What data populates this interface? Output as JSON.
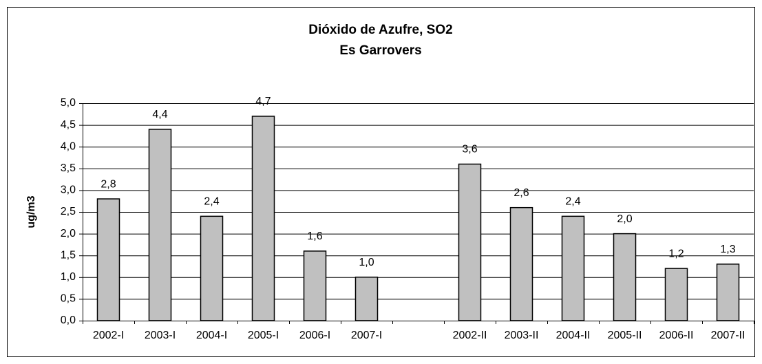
{
  "chart_data": {
    "type": "bar",
    "title": "Dióxido de Azufre, SO2",
    "subtitle": "Es Garrovers",
    "y_label": "ug/m3",
    "categories": [
      "2002-I",
      "2003-I",
      "2004-I",
      "2005-I",
      "2006-I",
      "2007-I",
      null,
      "2002-II",
      "2003-II",
      "2004-II",
      "2005-II",
      "2006-II",
      "2007-II"
    ],
    "values": [
      2.8,
      4.4,
      2.4,
      4.7,
      1.6,
      1.0,
      null,
      3.6,
      2.6,
      2.4,
      2.0,
      1.2,
      1.3
    ],
    "value_labels": [
      "2,8",
      "4,4",
      "2,4",
      "4,7",
      "1,6",
      "1,0",
      null,
      "3,6",
      "2,6",
      "2,4",
      "2,0",
      "1,2",
      "1,3"
    ],
    "color": "#c0c0c0",
    "ylim": [
      0,
      5
    ],
    "yticks": [
      {
        "value": 0,
        "label": "0,0"
      },
      {
        "value": 0.5,
        "label": "0,5"
      },
      {
        "value": 1,
        "label": "1,0"
      },
      {
        "value": 1.5,
        "label": "1,5"
      },
      {
        "value": 2,
        "label": "2,0"
      },
      {
        "value": 2.5,
        "label": "2,5"
      },
      {
        "value": 3,
        "label": "3,0"
      },
      {
        "value": 3.5,
        "label": "3,5"
      },
      {
        "value": 4,
        "label": "4,0"
      },
      {
        "value": 4.5,
        "label": "4,5"
      },
      {
        "value": 5,
        "label": "5,0"
      }
    ],
    "grid": true
  }
}
